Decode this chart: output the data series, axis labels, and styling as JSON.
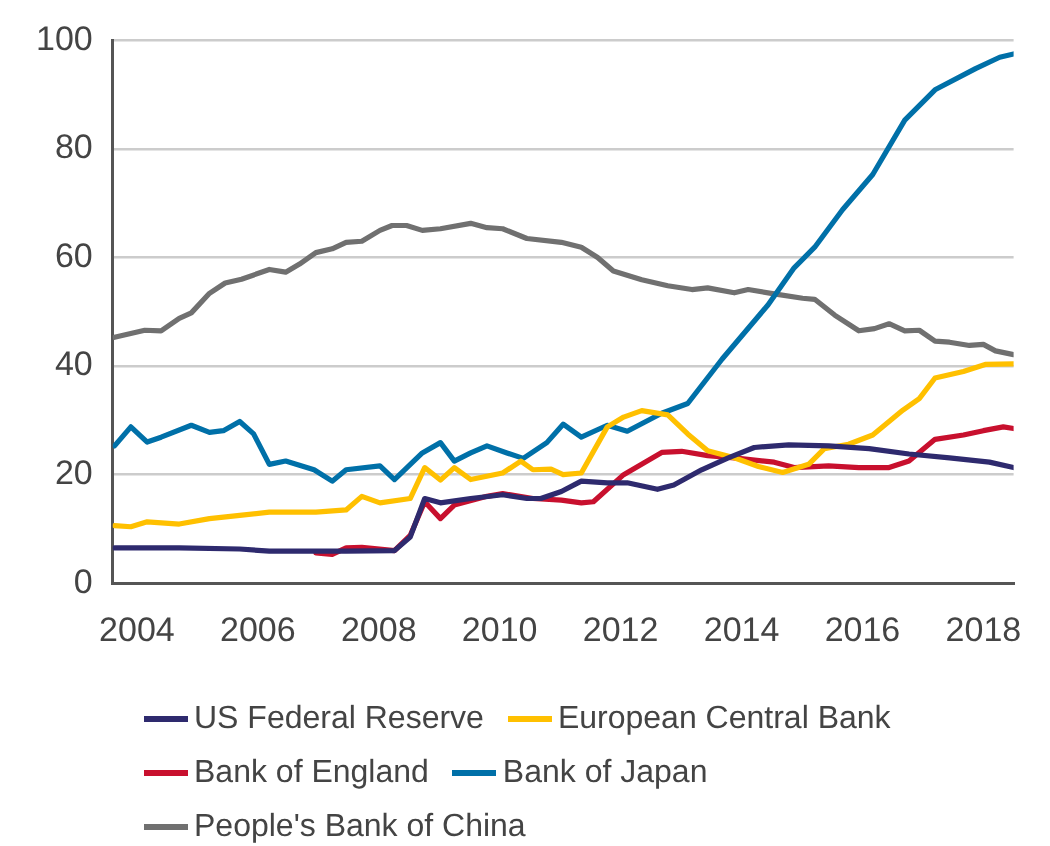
{
  "chart_data": {
    "type": "line",
    "legend": "bottom",
    "grid": "y",
    "marker": "none",
    "line_style": "solid",
    "xlim": [
      2003.6,
      2018.5
    ],
    "xticks": [
      2004,
      2006,
      2008,
      2010,
      2012,
      2014,
      2016,
      2018
    ],
    "ylim": [
      0,
      100
    ],
    "yticks": [
      0,
      20,
      40,
      60,
      80,
      100
    ],
    "series": [
      {
        "name": "US Federal Reserve",
        "color": "#2e2a6e",
        "x": [
          2003.63,
          2004.7,
          2005.7,
          2006.19,
          2007.46,
          2008.26,
          2008.52,
          2008.76,
          2009.02,
          2009.52,
          2010.05,
          2010.45,
          2010.68,
          2011.02,
          2011.35,
          2011.78,
          2012.11,
          2012.61,
          2012.88,
          2013.34,
          2013.78,
          2014.21,
          2014.78,
          2015.44,
          2016.11,
          2016.77,
          2017.44,
          2018.1,
          2018.5
        ],
        "values": [
          6.5,
          6.5,
          6.3,
          5.9,
          5.9,
          6,
          8.5,
          15.6,
          14.8,
          15.6,
          16.3,
          15.6,
          15.6,
          16.9,
          18.8,
          18.5,
          18.5,
          17.3,
          18.1,
          20.9,
          23.1,
          25,
          25.5,
          25.3,
          24.8,
          23.8,
          23.1,
          22.3,
          21.3
        ]
      },
      {
        "name": "European Central Bank",
        "color": "#ffc000",
        "x": [
          2003.63,
          2003.9,
          2004.17,
          2004.7,
          2005.2,
          2005.7,
          2006.19,
          2006.96,
          2007.46,
          2007.72,
          2008.02,
          2008.52,
          2008.76,
          2009.02,
          2009.25,
          2009.52,
          2010.05,
          2010.35,
          2010.55,
          2010.85,
          2011.05,
          2011.35,
          2011.78,
          2012.05,
          2012.35,
          2012.78,
          2013.11,
          2013.44,
          2013.88,
          2014.28,
          2014.68,
          2015.11,
          2015.37,
          2015.77,
          2016.17,
          2016.67,
          2016.94,
          2017.2,
          2017.67,
          2018.03,
          2018.5
        ],
        "values": [
          10.6,
          10.4,
          11.3,
          10.9,
          11.9,
          12.5,
          13.1,
          13.1,
          13.5,
          16,
          14.8,
          15.6,
          21.3,
          19,
          21.3,
          19.1,
          20.3,
          22.5,
          20.9,
          21,
          20,
          20.3,
          28.8,
          30.6,
          31.8,
          31,
          27.5,
          24.4,
          23.1,
          21.5,
          20.4,
          21.9,
          24.8,
          25.6,
          27.3,
          31.9,
          34,
          37.8,
          39,
          40.3,
          40.4
        ]
      },
      {
        "name": "Bank of England",
        "color": "#c8102e",
        "x": [
          2006.96,
          2007.23,
          2007.46,
          2007.72,
          2008.26,
          2008.52,
          2008.76,
          2009.02,
          2009.25,
          2009.79,
          2010.05,
          2010.55,
          2011.02,
          2011.35,
          2011.55,
          2012.05,
          2012.68,
          2013.01,
          2013.44,
          2013.88,
          2014.54,
          2014.87,
          2015.44,
          2015.94,
          2016.44,
          2016.77,
          2017.2,
          2017.67,
          2018.0,
          2018.33,
          2018.5
        ],
        "values": [
          5.6,
          5.3,
          6.5,
          6.6,
          6,
          8.8,
          15,
          11.9,
          14.4,
          16,
          16.5,
          15.6,
          15.3,
          14.8,
          15,
          20,
          24.1,
          24.3,
          23.5,
          23.1,
          22.3,
          21.3,
          21.6,
          21.3,
          21.3,
          22.5,
          26.5,
          27.3,
          28.1,
          28.8,
          28.5
        ]
      },
      {
        "name": "Bank of Japan",
        "color": "#0070a8",
        "x": [
          2003.63,
          2003.9,
          2004.17,
          2004.4,
          2004.9,
          2005.2,
          2005.43,
          2005.7,
          2005.93,
          2006.19,
          2006.46,
          2006.93,
          2007.23,
          2007.46,
          2008.02,
          2008.26,
          2008.72,
          2009.02,
          2009.25,
          2009.52,
          2009.79,
          2010.12,
          2010.39,
          2010.78,
          2011.05,
          2011.35,
          2011.78,
          2012.11,
          2012.68,
          2013.11,
          2013.68,
          2014.44,
          2014.87,
          2015.21,
          2015.67,
          2016.17,
          2016.7,
          2017.2,
          2017.87,
          2018.27,
          2018.5
        ],
        "values": [
          25.3,
          28.8,
          26,
          26.9,
          29.1,
          27.8,
          28.1,
          29.8,
          27.5,
          21.9,
          22.5,
          20.9,
          18.8,
          20.9,
          21.6,
          19.1,
          24,
          25.9,
          22.5,
          24,
          25.3,
          24,
          23,
          25.9,
          29.3,
          26.9,
          29.1,
          28,
          31.3,
          33.1,
          41.3,
          51.3,
          58.1,
          61.9,
          68.8,
          75.3,
          85.3,
          90.9,
          94.8,
          96.9,
          97.5
        ]
      },
      {
        "name": "People's Bank of China",
        "color": "#707070",
        "x": [
          2003.63,
          2004.13,
          2004.4,
          2004.7,
          2004.9,
          2005.2,
          2005.46,
          2005.73,
          2006.19,
          2006.46,
          2006.69,
          2006.96,
          2007.23,
          2007.46,
          2007.72,
          2008.02,
          2008.22,
          2008.46,
          2008.72,
          2009.02,
          2009.52,
          2009.79,
          2010.05,
          2010.45,
          2011.02,
          2011.35,
          2011.62,
          2011.88,
          2012.35,
          2012.78,
          2013.18,
          2013.44,
          2013.88,
          2014.11,
          2014.54,
          2015.01,
          2015.21,
          2015.54,
          2015.94,
          2016.2,
          2016.44,
          2016.7,
          2016.94,
          2017.2,
          2017.44,
          2017.77,
          2018.0,
          2018.2,
          2018.5
        ],
        "values": [
          45.3,
          46.6,
          46.5,
          48.8,
          49.8,
          53.4,
          55.3,
          56,
          57.8,
          57.3,
          58.8,
          60.9,
          61.6,
          62.8,
          63,
          65,
          65.9,
          65.9,
          65,
          65.3,
          66.3,
          65.5,
          65.3,
          63.5,
          62.8,
          61.9,
          60,
          57.5,
          55.9,
          54.8,
          54.1,
          54.4,
          53.5,
          54.1,
          53.3,
          52.5,
          52.3,
          49.4,
          46.5,
          46.9,
          47.8,
          46.5,
          46.6,
          44.6,
          44.4,
          43.8,
          44,
          42.8,
          42.1
        ]
      }
    ]
  }
}
